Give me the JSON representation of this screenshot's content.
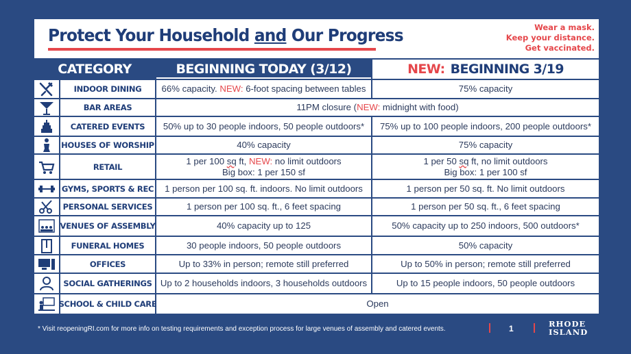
{
  "header": {
    "title_pre": "Protect Your Household ",
    "title_and": "and",
    "title_post": " Our Progress",
    "slogans": [
      "Wear a mask.",
      "Keep your distance.",
      "Get vaccinated."
    ]
  },
  "columns": {
    "category": "CATEGORY",
    "today": "BEGINNING TODAY (3/12)",
    "next_new": "NEW:",
    "next": "BEGINNING 3/19"
  },
  "rows": [
    {
      "icon": "dining-icon",
      "category": "INDOOR DINING",
      "today": [
        {
          "t": "66% capacity. "
        },
        {
          "t": "NEW:",
          "new": true
        },
        {
          "t": " 6-foot spacing between tables"
        }
      ],
      "next": [
        {
          "t": "75% capacity"
        }
      ]
    },
    {
      "icon": "cocktail-icon",
      "category": "BAR AREAS",
      "span": [
        {
          "t": "11PM closure ("
        },
        {
          "t": "NEW:",
          "new": true
        },
        {
          "t": "  midnight with food)"
        }
      ]
    },
    {
      "icon": "cake-icon",
      "category": "CATERED EVENTS",
      "today": [
        {
          "t": "50% up to 30 people indoors, 50 people outdoors*"
        }
      ],
      "next": [
        {
          "t": "75% up to 100 people indoors, 200 people outdoors*"
        }
      ]
    },
    {
      "icon": "worship-icon",
      "category": "HOUSES OF WORSHIP",
      "today": [
        {
          "t": "40% capacity"
        }
      ],
      "next": [
        {
          "t": "75% capacity"
        }
      ]
    },
    {
      "icon": "cart-icon",
      "category": "RETAIL",
      "today": [
        {
          "t": "1 per 100 "
        },
        {
          "t": "sq",
          "ul": true
        },
        {
          "t": " ft, "
        },
        {
          "t": "NEW:",
          "new": true
        },
        {
          "t": " no limit outdoors"
        },
        {
          "br": true
        },
        {
          "t": "Big box: 1 per 150 sf"
        }
      ],
      "next": [
        {
          "t": "1 per 50 "
        },
        {
          "t": "sq",
          "ul": true
        },
        {
          "t": " ft, no limit outdoors"
        },
        {
          "br": true
        },
        {
          "t": "Big box: 1 per 100 sf"
        }
      ]
    },
    {
      "icon": "dumbbell-icon",
      "category": "GYMS, SPORTS & REC",
      "today": [
        {
          "t": "1 person per 100 sq. ft. indoors. No limit outdoors"
        }
      ],
      "next": [
        {
          "t": "1 person per 50 sq. ft. No limit outdoors"
        }
      ]
    },
    {
      "icon": "scissors-icon",
      "category": "PERSONAL SERVICES",
      "today": [
        {
          "t": "1 person per 100 sq. ft., 6 feet spacing"
        }
      ],
      "next": [
        {
          "t": "1 person per 50 sq. ft., 6 feet spacing"
        }
      ]
    },
    {
      "icon": "audience-icon",
      "category": "VENUES OF ASSEMBLY",
      "today": [
        {
          "t": "40% capacity up to 125"
        }
      ],
      "next": [
        {
          "t": "50% capacity up to 250 indoors, 500 outdoors*"
        }
      ]
    },
    {
      "icon": "funeral-icon",
      "category": "FUNERAL HOMES",
      "today": [
        {
          "t": "30 people indoors, 50 people outdoors"
        }
      ],
      "next": [
        {
          "t": "50% capacity"
        }
      ]
    },
    {
      "icon": "computer-icon",
      "category": "OFFICES",
      "today": [
        {
          "t": "Up to 33% in person; remote still preferred"
        }
      ],
      "next": [
        {
          "t": "Up to 50% in person; remote still preferred"
        }
      ]
    },
    {
      "icon": "person-icon",
      "category": "SOCIAL GATHERINGS",
      "today": [
        {
          "t": "Up to 2 households indoors, 3 households outdoors"
        }
      ],
      "next": [
        {
          "t": "Up to 15 people indoors, 50 people outdoors"
        }
      ]
    },
    {
      "icon": "teacher-icon",
      "category": "SCHOOL & CHILD CARE",
      "span": [
        {
          "t": "Open"
        }
      ]
    }
  ],
  "footer": {
    "note": "* Visit reopeningRI.com for more info on testing requirements and exception process for large venues of assembly and catered events.",
    "page": "1",
    "logo_line1": "RHODE",
    "logo_line2": "ISLAND"
  },
  "colors": {
    "navy": "#2a4a82",
    "text_navy": "#1f3d78",
    "red": "#e5474b"
  }
}
